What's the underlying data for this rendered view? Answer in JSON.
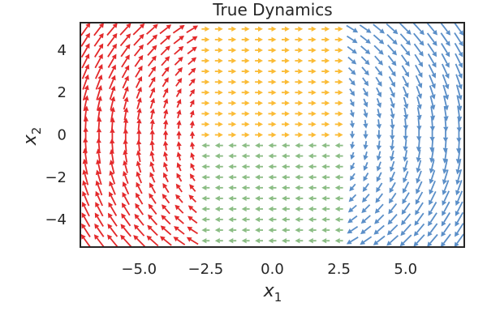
{
  "chart_data": {
    "type": "quiver",
    "title": "True Dynamics",
    "xlabel": "x",
    "xlabel_sub": "1",
    "ylabel": "x",
    "ylabel_sub": "2",
    "xlim": [
      -7.2,
      7.2
    ],
    "ylim": [
      -5.3,
      5.3
    ],
    "xticks": [
      -5.0,
      -2.5,
      0.0,
      2.5,
      5.0
    ],
    "xtick_labels": [
      "−5.0",
      "−2.5",
      "0.0",
      "2.5",
      "5.0"
    ],
    "yticks": [
      -4,
      -2,
      0,
      2,
      4
    ],
    "ytick_labels": [
      "−4",
      "−2",
      "0",
      "2",
      "4"
    ],
    "grid": false,
    "legend": "none",
    "grid_range": {
      "x": [
        -7.0,
        7.0
      ],
      "y": [
        -5.0,
        5.0
      ],
      "nx": 29,
      "ny": 21
    },
    "regions": [
      {
        "region": "x1 < -2.5",
        "color": "#e3292b",
        "field": "clockwise rotation (dx1 = x2, dx2 = -x1)"
      },
      {
        "region": "-2.5 <= x1 <= 2.5, x2 >= 0",
        "color": "#fbbb35",
        "field": "uniform flow +x1"
      },
      {
        "region": "-2.5 <= x1 <= 2.5, x2 < 0",
        "color": "#8bbd84",
        "field": "uniform flow -x1"
      },
      {
        "region": "x1 > 2.5",
        "color": "#5b8fc8",
        "field": "clockwise rotation (dx1 = x2, dx2 = -x1)"
      }
    ]
  }
}
